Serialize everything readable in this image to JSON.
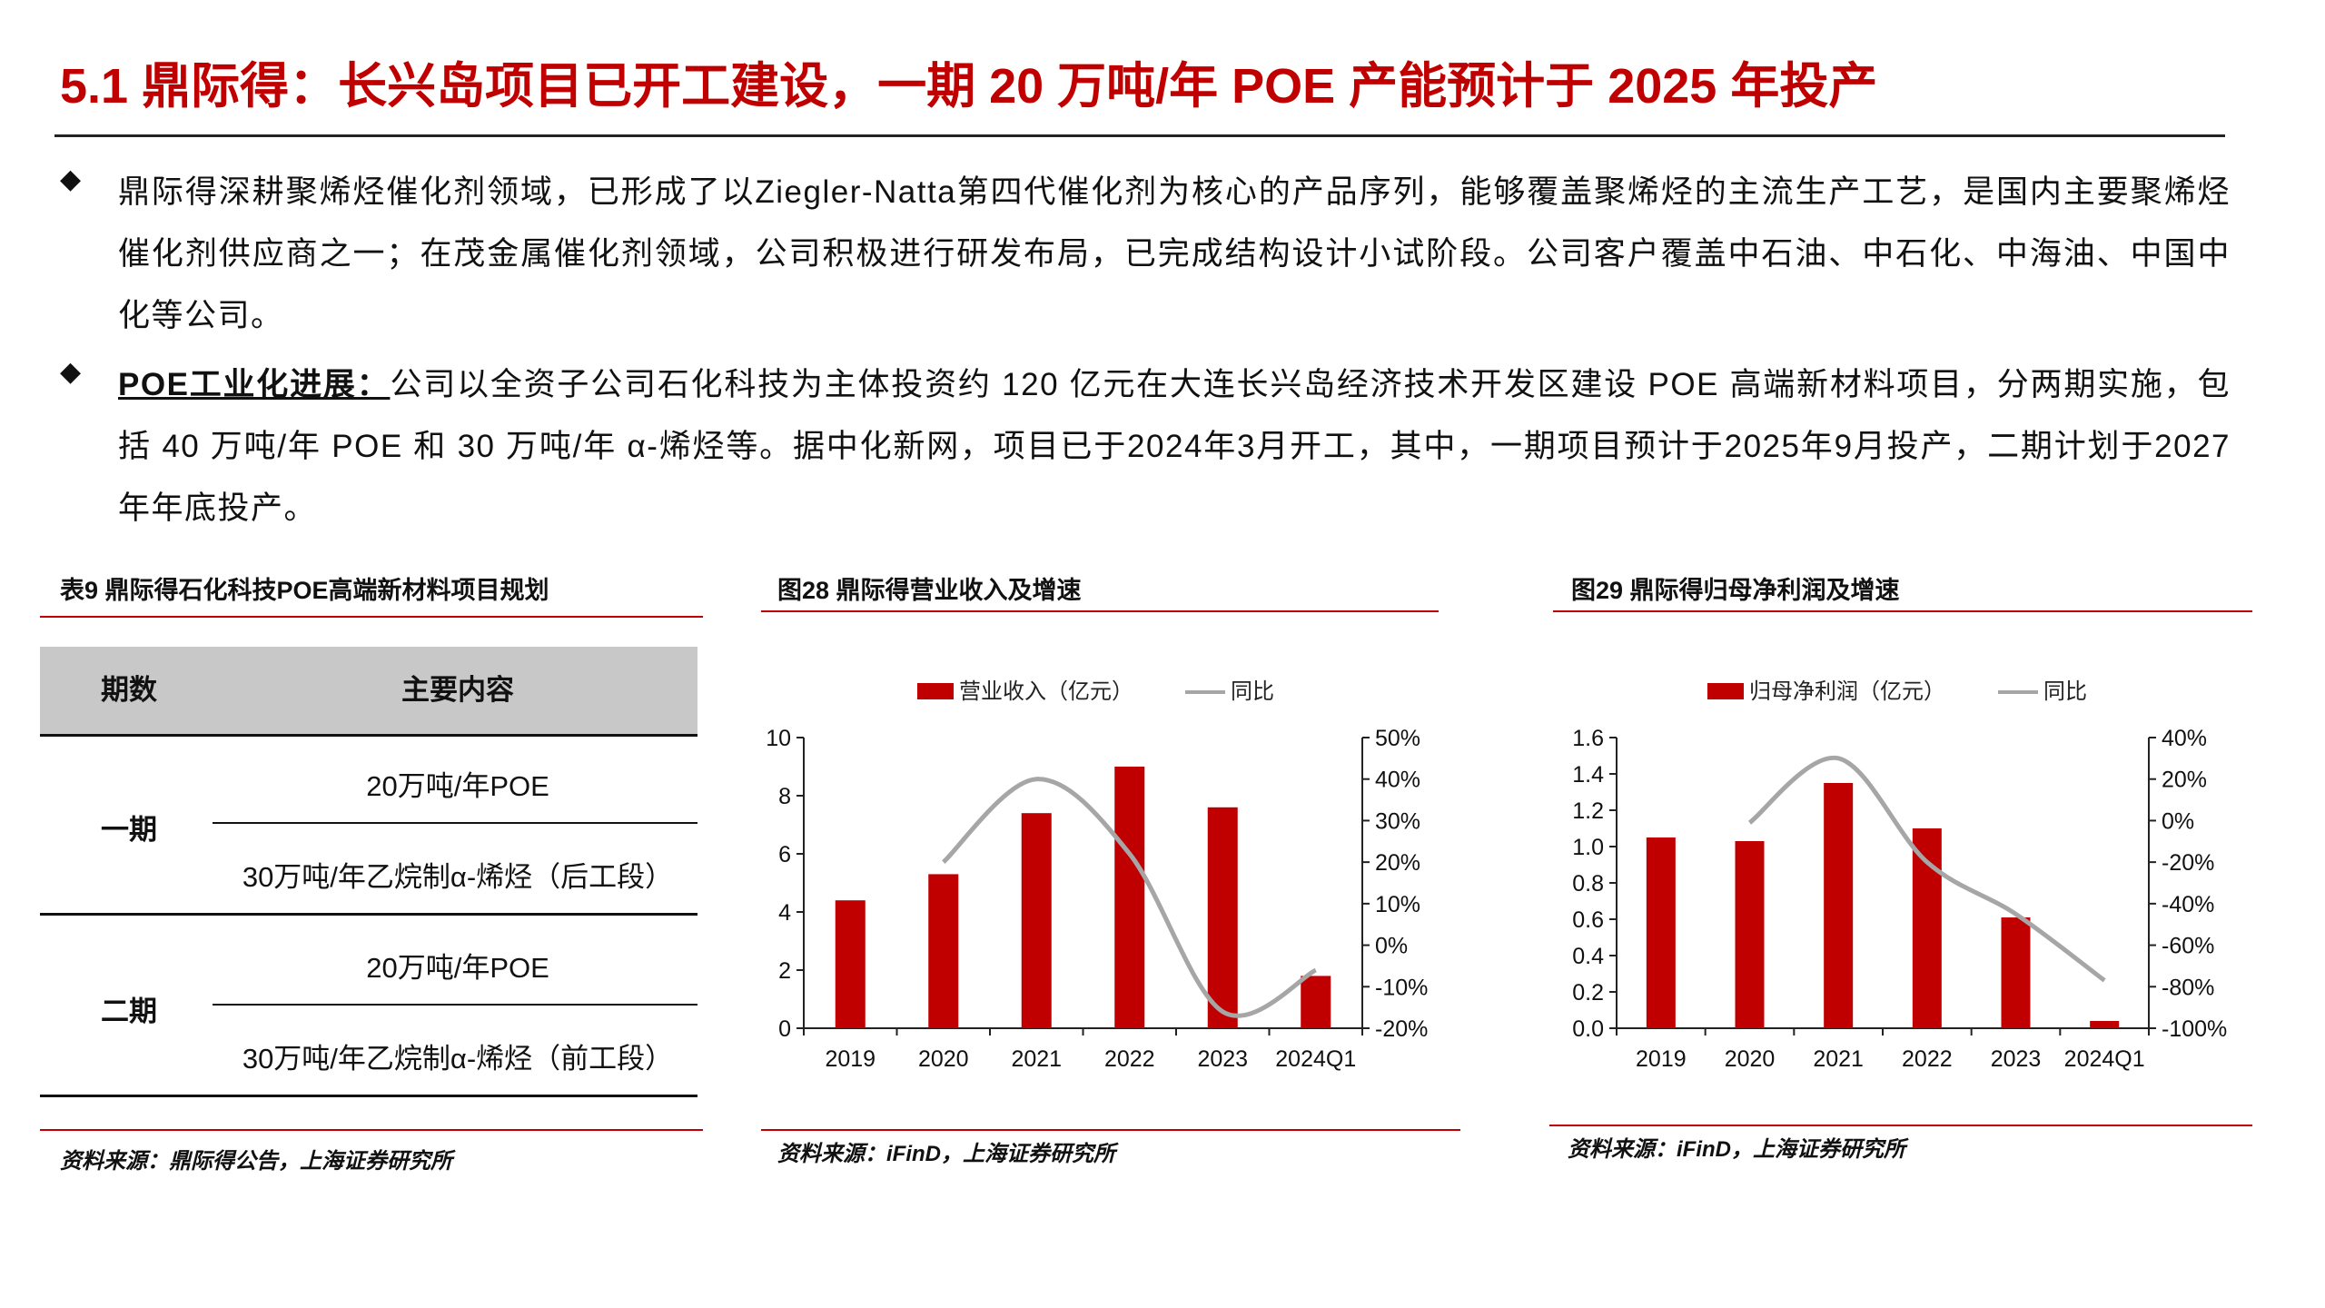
{
  "page": {
    "title": "5.1 鼎际得：长兴岛项目已开工建设，一期 20 万吨/年 POE 产能预计于 2025 年投产"
  },
  "bullets": {
    "b1": "鼎际得深耕聚烯烃催化剂领域，已形成了以Ziegler-Natta第四代催化剂为核心的产品序列，能够覆盖聚烯烃的主流生产工艺，是国内主要聚烯烃催化剂供应商之一；在茂金属催化剂领域，公司积极进行研发布局，已完成结构设计小试阶段。公司客户覆盖中石油、中石化、中海油、中国中化等公司。",
    "b2_lead": "POE工业化进展：",
    "b2_text": "公司以全资子公司石化科技为主体投资约 120 亿元在大连长兴岛经济技术开发区建设 POE 高端新材料项目，分两期实施，包括 40 万吨/年 POE 和 30 万吨/年 α-烯烃等。据中化新网，项目已于2024年3月开工，其中，一期项目预计于2025年9月投产，二期计划于2027年年底投产。"
  },
  "table": {
    "title": "表9 鼎际得石化科技POE高端新材料项目规划",
    "headers": {
      "period": "期数",
      "content": "主要内容"
    },
    "rows": [
      {
        "period": "一期",
        "items": [
          "20万吨/年POE",
          "30万吨/年乙烷制α-烯烃（后工段）"
        ]
      },
      {
        "period": "二期",
        "items": [
          "20万吨/年POE",
          "30万吨/年乙烷制α-烯烃（前工段）"
        ]
      }
    ],
    "source": "资料来源：鼎际得公告，上海证券研究所"
  },
  "charts": {
    "fig28": {
      "title": "图28 鼎际得营业收入及增速",
      "source": "资料来源：iFinD，上海证券研究所"
    },
    "fig29": {
      "title": "图29 鼎际得归母净利润及增速",
      "source": "资料来源：iFinD，上海证券研究所"
    }
  },
  "colors": {
    "accent": "#c00000",
    "line": "#a6a6a6",
    "header_bg": "#c8c8c8"
  },
  "chart_data": [
    {
      "id": "fig28",
      "type": "bar+line",
      "title": "图28 鼎际得营业收入及增速",
      "categories": [
        "2019",
        "2020",
        "2021",
        "2022",
        "2023",
        "2024Q1"
      ],
      "series": [
        {
          "name": "营业收入（亿元）",
          "type": "bar",
          "axis": "left",
          "values": [
            4.4,
            5.3,
            7.4,
            9.0,
            7.6,
            1.8
          ]
        },
        {
          "name": "同比",
          "type": "line",
          "axis": "right",
          "values": [
            null,
            20,
            40,
            22,
            -16,
            -6
          ]
        }
      ],
      "left_axis": {
        "min": 0,
        "max": 10,
        "ticks": [
          "0",
          "2",
          "4",
          "6",
          "8",
          "10"
        ]
      },
      "right_axis": {
        "min": -20,
        "max": 50,
        "ticks": [
          "-20%",
          "-10%",
          "0%",
          "10%",
          "20%",
          "30%",
          "40%",
          "50%"
        ]
      },
      "legend": [
        "营业收入（亿元）",
        "同比"
      ]
    },
    {
      "id": "fig29",
      "type": "bar+line",
      "title": "图29 鼎际得归母净利润及增速",
      "categories": [
        "2019",
        "2020",
        "2021",
        "2022",
        "2023",
        "2024Q1"
      ],
      "series": [
        {
          "name": "归母净利润（亿元）",
          "type": "bar",
          "axis": "left",
          "values": [
            1.05,
            1.03,
            1.35,
            1.1,
            0.61,
            0.04
          ]
        },
        {
          "name": "同比",
          "type": "line",
          "axis": "right",
          "values": [
            null,
            -1,
            30,
            -20,
            -45,
            -77
          ]
        }
      ],
      "left_axis": {
        "min": 0,
        "max": 1.6,
        "ticks": [
          "0.0",
          "0.2",
          "0.4",
          "0.6",
          "0.8",
          "1.0",
          "1.2",
          "1.4",
          "1.6"
        ]
      },
      "right_axis": {
        "min": -100,
        "max": 40,
        "ticks": [
          "-100%",
          "-80%",
          "-60%",
          "-40%",
          "-20%",
          "0%",
          "20%",
          "40%"
        ]
      },
      "legend": [
        "归母净利润（亿元）",
        "同比"
      ]
    }
  ]
}
